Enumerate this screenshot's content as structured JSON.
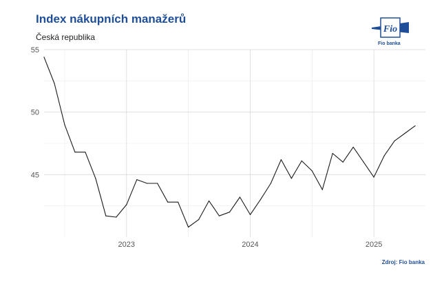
{
  "header": {
    "title": "Index nákupních manažerů",
    "subtitle": "Česká republika"
  },
  "logo": {
    "name": "fio-logo",
    "text": "Fio",
    "caption": "Fio banka",
    "color": "#1f4e99"
  },
  "footer": {
    "source": "Zdroj: Fio banka"
  },
  "chart_data": {
    "type": "line",
    "title": "Index nákupních manažerů",
    "subtitle": "Česká republika",
    "xlabel": "",
    "ylabel": "",
    "x_range": [
      "2022-05",
      "2025-06"
    ],
    "ylim": [
      40,
      55
    ],
    "y_ticks": [
      45,
      50,
      55
    ],
    "x_ticks": [
      {
        "date": "2023-01",
        "label": "2023"
      },
      {
        "date": "2024-01",
        "label": "2024"
      },
      {
        "date": "2025-01",
        "label": "2025"
      }
    ],
    "grid": true,
    "line_color": "#1a1a1a",
    "series": [
      {
        "x": [
          "2022-05",
          "2022-06",
          "2022-07",
          "2022-08",
          "2022-09",
          "2022-10",
          "2022-11",
          "2022-12",
          "2023-01",
          "2023-02",
          "2023-03",
          "2023-04",
          "2023-05",
          "2023-06",
          "2023-07",
          "2023-08",
          "2023-09",
          "2023-10",
          "2023-11",
          "2023-12",
          "2024-01",
          "2024-02",
          "2024-03",
          "2024-04",
          "2024-05",
          "2024-06",
          "2024-07",
          "2024-08",
          "2024-09",
          "2024-10",
          "2024-11",
          "2024-12",
          "2025-01",
          "2025-02",
          "2025-03",
          "2025-04",
          "2025-05"
        ],
        "values": [
          54.4,
          52.3,
          49.0,
          46.8,
          46.8,
          44.7,
          41.7,
          41.6,
          42.6,
          44.6,
          44.3,
          44.3,
          42.8,
          42.8,
          40.8,
          41.4,
          42.9,
          41.7,
          42.0,
          43.2,
          41.8,
          43.0,
          44.3,
          46.2,
          44.7,
          46.1,
          45.3,
          43.8,
          46.7,
          46.0,
          47.2,
          46.0,
          44.8,
          46.5,
          47.7,
          48.3,
          48.9
        ]
      }
    ]
  }
}
